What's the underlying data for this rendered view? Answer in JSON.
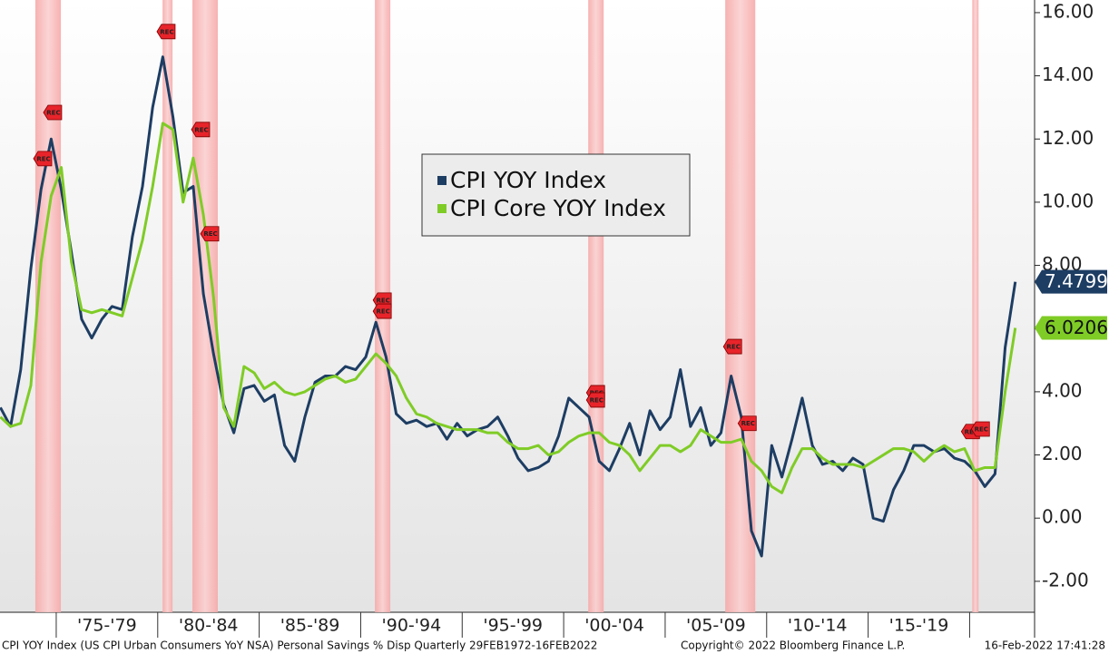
{
  "chart_data": {
    "type": "line",
    "x": [
      1972.25,
      1972.75,
      1973.25,
      1973.75,
      1974.25,
      1974.75,
      1975.25,
      1975.75,
      1976.25,
      1976.75,
      1977.25,
      1977.75,
      1978.25,
      1978.75,
      1979.25,
      1979.75,
      1980.25,
      1980.75,
      1981.25,
      1981.75,
      1982.25,
      1982.75,
      1983.25,
      1983.75,
      1984.25,
      1984.75,
      1985.25,
      1985.75,
      1986.25,
      1986.75,
      1987.25,
      1987.75,
      1988.25,
      1988.75,
      1989.25,
      1989.75,
      1990.25,
      1990.75,
      1991.25,
      1991.75,
      1992.25,
      1992.75,
      1993.25,
      1993.75,
      1994.25,
      1994.75,
      1995.25,
      1995.75,
      1996.25,
      1996.75,
      1997.25,
      1997.75,
      1998.25,
      1998.75,
      1999.25,
      1999.75,
      2000.25,
      2000.75,
      2001.25,
      2001.75,
      2002.25,
      2002.75,
      2003.25,
      2003.75,
      2004.25,
      2004.75,
      2005.25,
      2005.75,
      2006.25,
      2006.75,
      2007.25,
      2007.75,
      2008.25,
      2008.75,
      2009.25,
      2009.75,
      2010.25,
      2010.75,
      2011.25,
      2011.75,
      2012.25,
      2012.75,
      2013.25,
      2013.75,
      2014.25,
      2014.75,
      2015.25,
      2015.75,
      2016.25,
      2016.75,
      2017.25,
      2017.75,
      2018.25,
      2018.75,
      2019.25,
      2019.75,
      2020.25,
      2020.75,
      2021.25,
      2021.75,
      2022.25
    ],
    "series": [
      {
        "name": "CPI YOY Index",
        "color": "#1d3d63",
        "last_label": "7.4799",
        "values": [
          3.5,
          2.9,
          4.7,
          7.9,
          10.4,
          12.0,
          10.4,
          8.4,
          6.3,
          5.7,
          6.3,
          6.7,
          6.6,
          8.9,
          10.5,
          13.0,
          14.6,
          12.7,
          10.3,
          10.5,
          7.1,
          5.2,
          3.6,
          2.7,
          4.1,
          4.2,
          3.7,
          3.9,
          2.3,
          1.8,
          3.2,
          4.3,
          4.5,
          4.5,
          4.8,
          4.7,
          5.1,
          6.2,
          5.1,
          3.3,
          3.0,
          3.1,
          2.9,
          3.0,
          2.5,
          3.0,
          2.6,
          2.8,
          2.9,
          3.2,
          2.6,
          1.9,
          1.5,
          1.6,
          1.8,
          2.6,
          3.8,
          3.5,
          3.2,
          1.8,
          1.5,
          2.2,
          3.0,
          2.0,
          3.4,
          2.8,
          3.2,
          4.7,
          2.9,
          3.5,
          2.3,
          2.7,
          4.5,
          3.2,
          -0.4,
          -1.2,
          2.3,
          1.3,
          2.5,
          3.8,
          2.3,
          1.7,
          1.8,
          1.5,
          1.9,
          1.7,
          0.0,
          -0.1,
          0.9,
          1.5,
          2.3,
          2.3,
          2.1,
          2.2,
          1.9,
          1.8,
          1.5,
          1.0,
          1.4,
          5.4,
          7.4799
        ]
      },
      {
        "name": "CPI Core YOY Index",
        "color": "#7fcc26",
        "last_label": "6.0206",
        "values": [
          3.2,
          2.9,
          3.0,
          4.2,
          8.1,
          10.2,
          11.1,
          8.1,
          6.6,
          6.5,
          6.6,
          6.5,
          6.4,
          7.6,
          8.8,
          10.5,
          12.5,
          12.3,
          10.0,
          11.4,
          9.6,
          7.0,
          3.5,
          2.9,
          4.8,
          4.6,
          4.1,
          4.3,
          4.0,
          3.9,
          4.0,
          4.2,
          4.4,
          4.5,
          4.3,
          4.4,
          4.8,
          5.2,
          4.9,
          4.5,
          3.8,
          3.3,
          3.2,
          3.0,
          2.9,
          2.8,
          2.8,
          2.8,
          2.7,
          2.7,
          2.4,
          2.2,
          2.2,
          2.3,
          2.0,
          2.1,
          2.4,
          2.6,
          2.7,
          2.7,
          2.4,
          2.3,
          2.0,
          1.5,
          1.9,
          2.3,
          2.3,
          2.1,
          2.3,
          2.8,
          2.6,
          2.4,
          2.4,
          2.5,
          1.8,
          1.5,
          1.0,
          0.8,
          1.6,
          2.2,
          2.2,
          1.9,
          1.7,
          1.7,
          1.7,
          1.6,
          1.8,
          2.0,
          2.2,
          2.2,
          2.1,
          1.8,
          2.1,
          2.3,
          2.1,
          2.2,
          1.5,
          1.6,
          1.6,
          4.0,
          6.0206
        ]
      }
    ],
    "xlim": [
      1972.23,
      2023.2
    ],
    "xticks": [
      1975,
      1980,
      1985,
      1990,
      1995,
      2000,
      2005,
      2010,
      2015,
      2020
    ],
    "period_labels": [
      "'75-'79",
      "'80-'84",
      "'85-'89",
      "'90-'94",
      "'95-'99",
      "'00-'04",
      "'05-'09",
      "'10-'14",
      "'15-'19"
    ],
    "ylim": [
      -2.98,
      16.4
    ],
    "yticks": [
      {
        "value": -2,
        "label": "-2.00"
      },
      {
        "value": 0,
        "label": "0.00"
      },
      {
        "value": 2,
        "label": "2.00"
      },
      {
        "value": 4,
        "label": "4.00"
      },
      {
        "value": 6,
        "label": "6.00"
      },
      {
        "value": 8,
        "label": "8.00"
      },
      {
        "value": 10,
        "label": "10.00"
      },
      {
        "value": 12,
        "label": "12.00"
      },
      {
        "value": 14,
        "label": "14.00"
      },
      {
        "value": 16,
        "label": "16.00"
      }
    ],
    "recessions": [
      [
        1973.97,
        1975.23
      ],
      [
        1980.24,
        1980.73
      ],
      [
        1981.71,
        1982.96
      ],
      [
        1990.7,
        1991.46
      ],
      [
        2001.21,
        2001.97
      ],
      [
        2007.96,
        2009.44
      ],
      [
        2020.13,
        2020.44
      ]
    ],
    "annotations": [
      {
        "label": "REC",
        "x": 1974.33,
        "y": 11.38
      },
      {
        "label": "REC",
        "x": 1974.82,
        "y": 12.84
      },
      {
        "label": "REC",
        "x": 1980.41,
        "y": 15.4
      },
      {
        "label": "REC",
        "x": 1982.11,
        "y": 12.3
      },
      {
        "label": "REC",
        "x": 1982.56,
        "y": 9.0
      },
      {
        "label": "REC",
        "x": 1991.06,
        "y": 6.9
      },
      {
        "label": "REC",
        "x": 1991.06,
        "y": 6.55
      },
      {
        "label": "REC",
        "x": 2001.57,
        "y": 3.97
      },
      {
        "label": "REC",
        "x": 2001.57,
        "y": 3.74
      },
      {
        "label": "REC",
        "x": 2008.32,
        "y": 5.43
      },
      {
        "label": "REC",
        "x": 2009.04,
        "y": 3.0
      },
      {
        "label": "REC",
        "x": 2020.04,
        "y": 2.74
      },
      {
        "label": "REC",
        "x": 2020.53,
        "y": 2.82
      }
    ],
    "legend": "center",
    "footer": {
      "left": "CPI YOY Index (US CPI Urban Consumers YoY NSA) Personal Savings % Disp  Quarterly 29FEB1972-16FEB2022",
      "center": "Copyright© 2022 Bloomberg Finance L.P.",
      "right": "16-Feb-2022 17:41:28"
    }
  }
}
